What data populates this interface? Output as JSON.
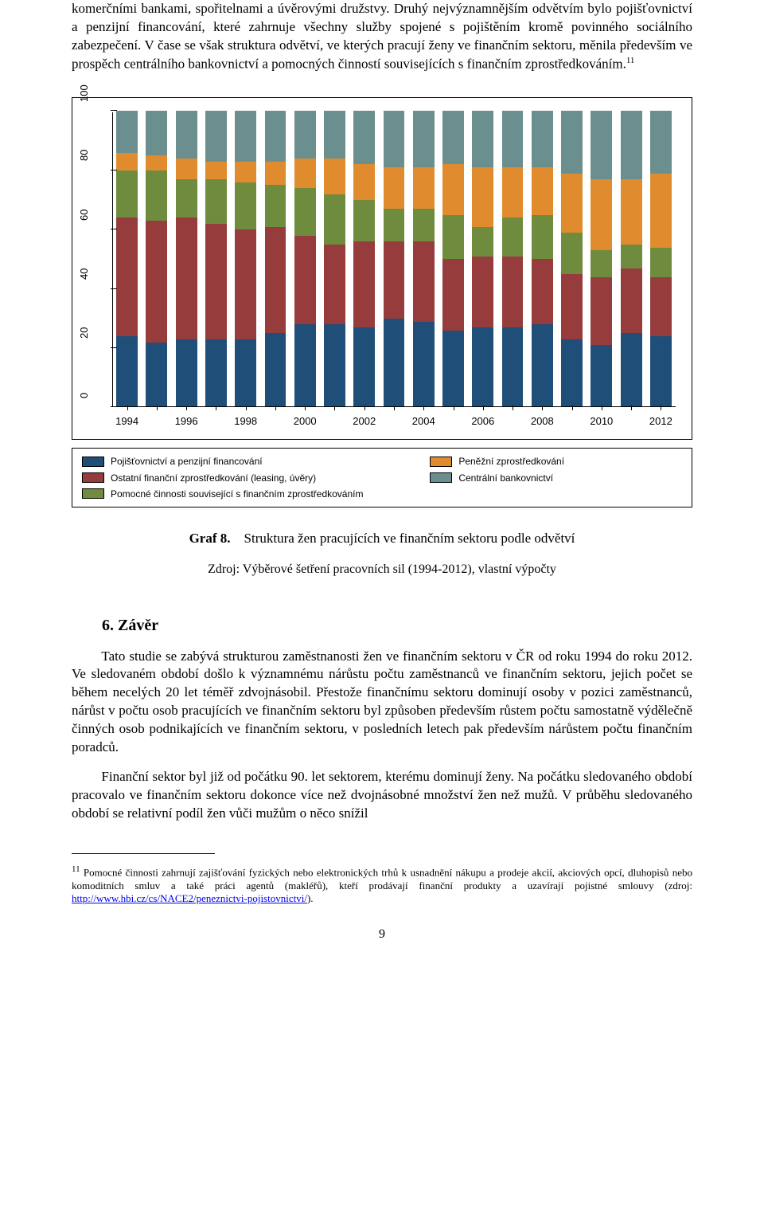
{
  "intro_paragraph": "komerčními bankami, spořitelnami a úvěrovými družstvy. Druhý nejvýznamnějším odvětvím bylo pojišťovnictví a penzijní financování, které zahrnuje všechny služby spojené s pojištěním kromě povinného sociálního zabezpečení. V čase se však struktura odvětví, ve kterých pracují ženy ve finančním sektoru, měnila především ve prospěch centrálního bankovnictví a pomocných činností souvisejících s finančním zprostředkováním.",
  "intro_sup": "11",
  "chart": {
    "type": "stacked-bar",
    "ylim": [
      0,
      100
    ],
    "yticks": [
      0,
      20,
      40,
      60,
      80,
      100
    ],
    "xticks_shown": [
      1994,
      1996,
      1998,
      2000,
      2002,
      2004,
      2006,
      2008,
      2010,
      2012
    ],
    "years": [
      1994,
      1995,
      1996,
      1997,
      1998,
      1999,
      2000,
      2001,
      2002,
      2003,
      2004,
      2005,
      2006,
      2007,
      2008,
      2009,
      2010,
      2011,
      2012
    ],
    "series_order": [
      "s1",
      "s2",
      "s3",
      "s4",
      "s5"
    ],
    "colors": {
      "s1": "#1f4e79",
      "s2": "#963c3c",
      "s3": "#6f8b3d",
      "s4": "#e08c2e",
      "s5": "#6b8f8f"
    },
    "series_labels": {
      "s1": "Pojišťovnictví a penzijní financování",
      "s2": "Ostatní finanční zprostředkování (leasing, úvěry)",
      "s3": "Pomocné činnosti související s finančním zprostředkováním",
      "s4": "Peněžní zprostředkování",
      "s5": "Centrální bankovnictví"
    },
    "values": {
      "s1": [
        24,
        22,
        23,
        23,
        23,
        25,
        28,
        28,
        27,
        30,
        29,
        26,
        27,
        27,
        28,
        23,
        21,
        25,
        24
      ],
      "s2": [
        40,
        41,
        41,
        39,
        37,
        36,
        30,
        27,
        29,
        26,
        27,
        24,
        24,
        24,
        22,
        22,
        23,
        22,
        20
      ],
      "s3": [
        16,
        17,
        13,
        15,
        16,
        14,
        16,
        17,
        14,
        11,
        11,
        15,
        10,
        13,
        15,
        14,
        9,
        8,
        10
      ],
      "s4": [
        6,
        5,
        7,
        6,
        7,
        8,
        10,
        12,
        12,
        14,
        14,
        17,
        20,
        17,
        16,
        20,
        24,
        22,
        25
      ],
      "s5": [
        14,
        15,
        16,
        17,
        17,
        17,
        16,
        16,
        18,
        19,
        19,
        18,
        19,
        19,
        19,
        21,
        23,
        23,
        21
      ]
    }
  },
  "legend": {
    "left": [
      {
        "key": "s1",
        "label": "Pojišťovnictví a penzijní financování"
      },
      {
        "key": "s2",
        "label": "Ostatní finanční zprostředkování (leasing, úvěry)"
      },
      {
        "key": "s3",
        "label": "Pomocné činnosti související s finančním zprostředkováním"
      }
    ],
    "right": [
      {
        "key": "s4",
        "label": "Peněžní zprostředkování"
      },
      {
        "key": "s5",
        "label": "Centrální bankovnictví"
      }
    ]
  },
  "caption_bold": "Graf 8.",
  "caption_rest": "Struktura žen pracujících ve finančním sektoru podle odvětví",
  "caption_source": "Zdroj: Výběrové šetření pracovních sil (1994-2012), vlastní výpočty",
  "section_heading": "6. Závěr",
  "body_p1": "Tato studie se zabývá strukturou zaměstnanosti žen ve finančním sektoru v ČR od roku 1994 do roku 2012. Ve sledovaném období došlo k významnému nárůstu počtu zaměstnanců ve finančním sektoru, jejich počet se během necelých 20 let téměř zdvojnásobil. Přestože finančnímu sektoru dominují osoby v pozici zaměstnanců, nárůst v počtu osob pracujících ve finančním sektoru byl způsoben především růstem počtu samostatně výdělečně činných osob podnikajících ve finančním sektoru, v posledních letech pak především nárůstem počtu finančním poradců.",
  "body_p2": "Finanční sektor byl již od počátku 90. let sektorem, kterému dominují ženy. Na počátku sledovaného období pracovalo ve finančním sektoru dokonce více než dvojnásobné množství žen než mužů. V průběhu sledovaného období se relativní podíl žen vůči mužům o něco snížil",
  "footnote_num": "11",
  "footnote_text_a": " Pomocné činnosti zahrnují zajišťování fyzických nebo elektronických trhů k usnadnění nákupu a prodeje akcií, akciových opcí, dluhopisů nebo komoditních smluv a také práci agentů (makléřů), kteří prodávají finanční produkty a uzavírají pojistné smlouvy (zdroj: ",
  "footnote_link": "http://www.hbi.cz/cs/NACE2/peneznictvi-pojistovnictvi/",
  "footnote_text_b": ").",
  "page_number": "9"
}
